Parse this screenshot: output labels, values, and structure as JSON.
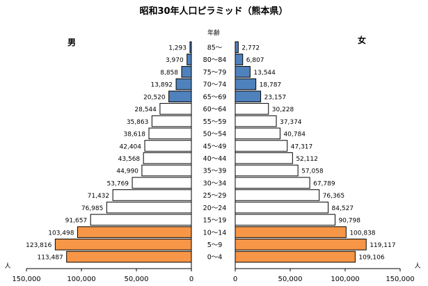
{
  "chart_data": {
    "type": "bar",
    "title": "昭和30年人口ピラミッド（熊本県）",
    "age_axis_label": "年齢",
    "left_label": "男",
    "right_label": "女",
    "unit_label": "人",
    "categories": [
      "85～",
      "80～84",
      "75～79",
      "70～74",
      "65～69",
      "60～64",
      "55～59",
      "50～54",
      "45～49",
      "40～44",
      "35～39",
      "30～34",
      "25～29",
      "20～24",
      "15～19",
      "10～14",
      "5～9",
      "0～4"
    ],
    "series": [
      {
        "name": "男",
        "values": [
          1293,
          3970,
          8858,
          13892,
          20520,
          28544,
          35863,
          38618,
          42404,
          43568,
          44990,
          53769,
          71432,
          76985,
          91657,
          103498,
          123816,
          113487
        ],
        "labels": [
          "1,293",
          "3,970",
          "8,858",
          "13,892",
          "20,520",
          "28,544",
          "35,863",
          "38,618",
          "42,404",
          "43,568",
          "44,990",
          "53,769",
          "71,432",
          "76,985",
          "91,657",
          "103,498",
          "123,816",
          "113,487"
        ]
      },
      {
        "name": "女",
        "values": [
          2772,
          6807,
          13544,
          18787,
          23157,
          30228,
          37374,
          40784,
          47317,
          52112,
          57058,
          67789,
          76365,
          84527,
          90798,
          100838,
          119117,
          109106
        ],
        "labels": [
          "2,772",
          "6,807",
          "13,544",
          "18,787",
          "23,157",
          "30,228",
          "37,374",
          "40,784",
          "47,317",
          "52,112",
          "57,058",
          "67,789",
          "76,365",
          "84,527",
          "90,798",
          "100,838",
          "119,117",
          "109,106"
        ]
      }
    ],
    "x_range": [
      0,
      150000
    ],
    "x_ticks": [
      {
        "value": 150000,
        "label": "150,000"
      },
      {
        "value": 100000,
        "label": "100,000"
      },
      {
        "value": 50000,
        "label": "50,000"
      },
      {
        "value": 0,
        "label": "0"
      }
    ],
    "age_group_colors": {
      "elderly": "#4f81bd",
      "working": "#ffffff",
      "young": "#f79646"
    },
    "age_groups": [
      "elderly",
      "elderly",
      "elderly",
      "elderly",
      "elderly",
      "working",
      "working",
      "working",
      "working",
      "working",
      "working",
      "working",
      "working",
      "working",
      "working",
      "young",
      "young",
      "young"
    ],
    "bar_stroke": "#000000",
    "grid": false
  }
}
